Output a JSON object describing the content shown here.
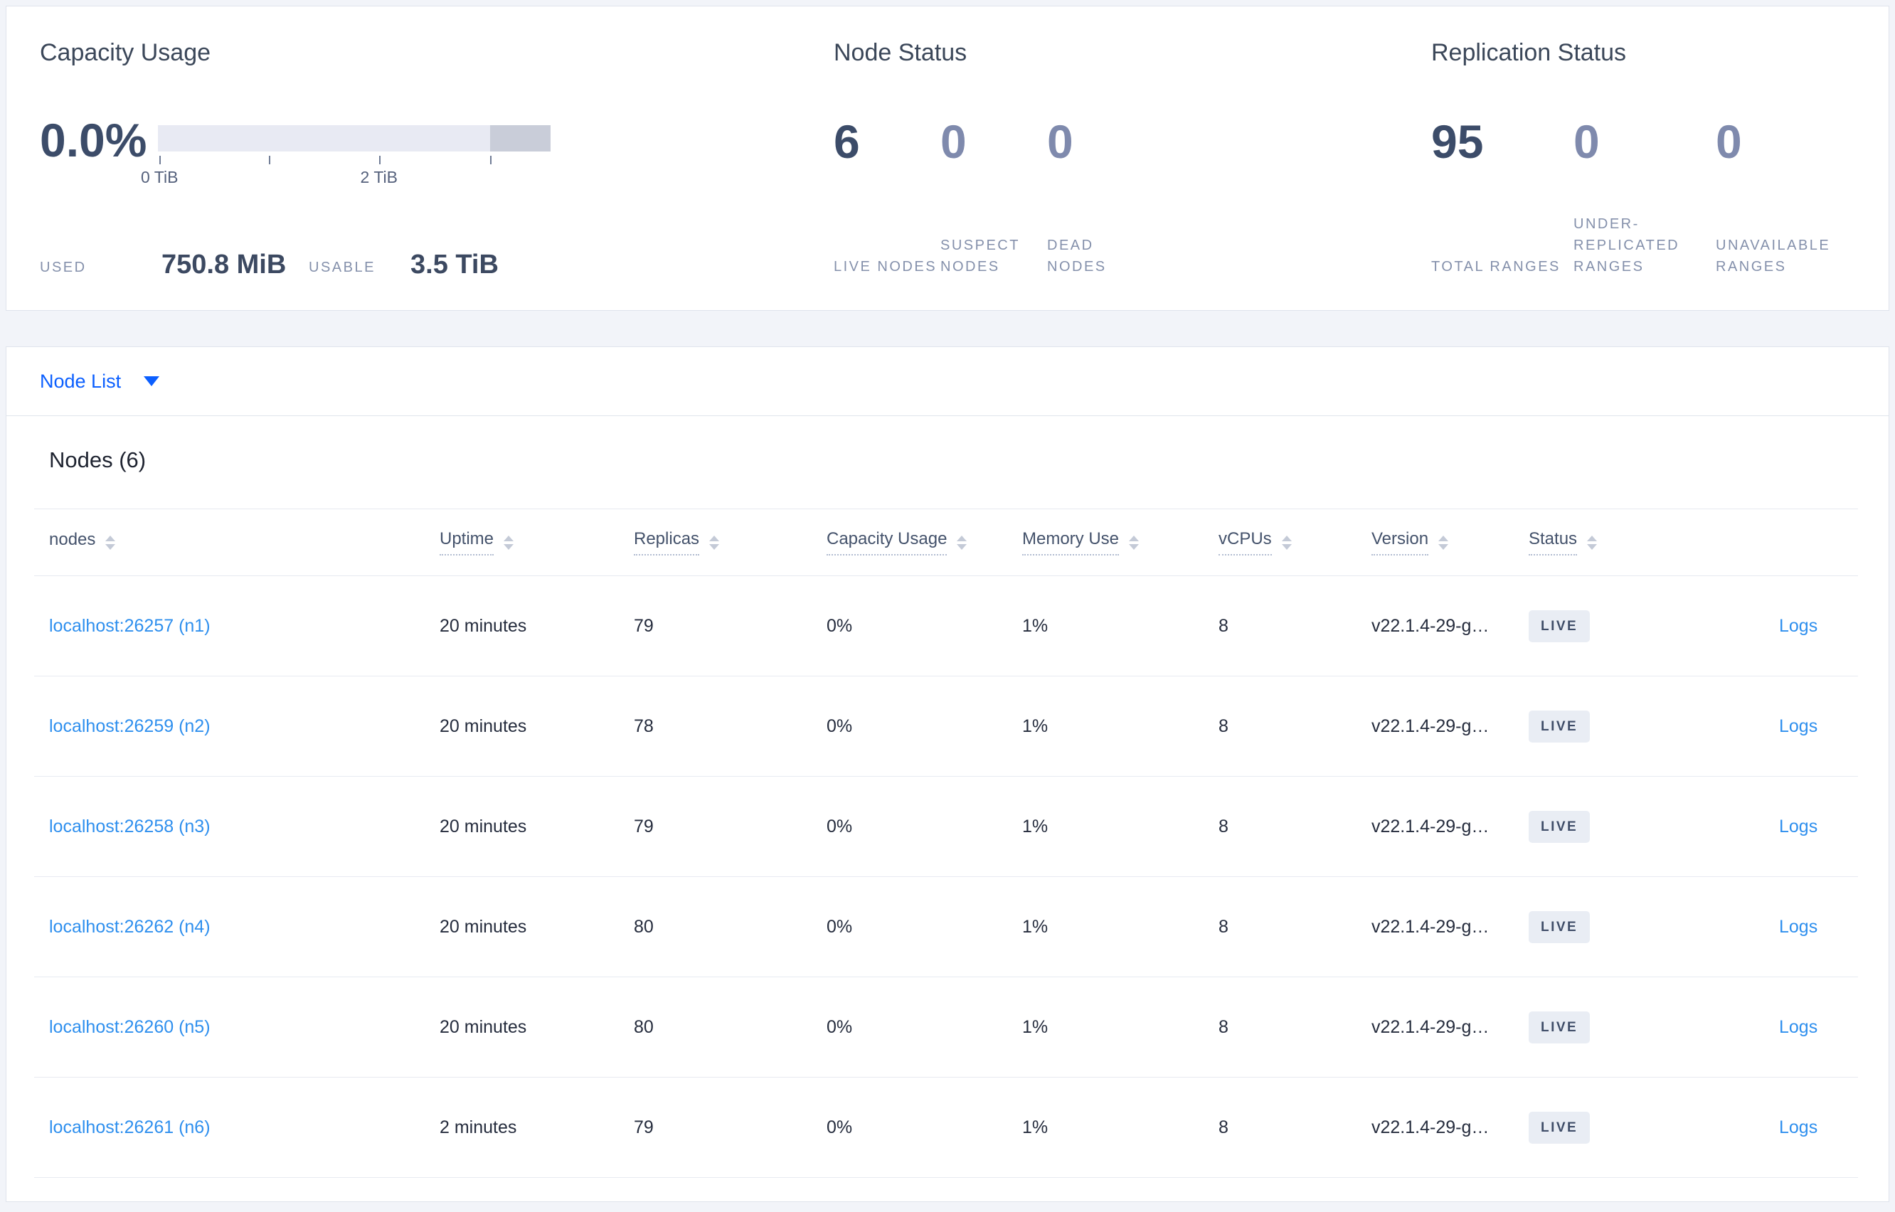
{
  "summary": {
    "capacity": {
      "title": "Capacity Usage",
      "percent": "0.0%",
      "bar": {
        "track_color": "#e8eaf3",
        "segment_color": "#c9cdd9",
        "segment_start": 0.846,
        "ticks": [
          {
            "pos": 0.004,
            "label": "0 TiB"
          },
          {
            "pos": 0.283,
            "label": ""
          },
          {
            "pos": 0.563,
            "label": "2 TiB"
          },
          {
            "pos": 0.846,
            "label": ""
          }
        ]
      },
      "used_label": "USED",
      "used_value": "750.8 MiB",
      "usable_label": "USABLE",
      "usable_value": "3.5 TiB"
    },
    "node_status": {
      "title": "Node Status",
      "stats": [
        {
          "value": "6",
          "label": "LIVE NODES",
          "emphasis": true
        },
        {
          "value": "0",
          "label": "SUSPECT NODES",
          "emphasis": false
        },
        {
          "value": "0",
          "label": "DEAD NODES",
          "emphasis": false
        }
      ]
    },
    "replication": {
      "title": "Replication Status",
      "stats": [
        {
          "value": "95",
          "label": "TOTAL RANGES",
          "emphasis": true
        },
        {
          "value": "0",
          "label": "UNDER-REPLICATED RANGES",
          "emphasis": false
        },
        {
          "value": "0",
          "label": "UNAVAILABLE RANGES",
          "emphasis": false
        }
      ]
    }
  },
  "view_selector": {
    "label": "Node List"
  },
  "nodes_section": {
    "heading": "Nodes (6)",
    "columns": [
      {
        "label": "nodes",
        "sortable": true,
        "underlined": false
      },
      {
        "label": "Uptime",
        "sortable": true,
        "underlined": true
      },
      {
        "label": "Replicas",
        "sortable": true,
        "underlined": true
      },
      {
        "label": "Capacity Usage",
        "sortable": true,
        "underlined": true
      },
      {
        "label": "Memory Use",
        "sortable": true,
        "underlined": true
      },
      {
        "label": "vCPUs",
        "sortable": true,
        "underlined": true
      },
      {
        "label": "Version",
        "sortable": true,
        "underlined": true
      },
      {
        "label": "Status",
        "sortable": true,
        "underlined": true
      },
      {
        "label": "",
        "sortable": false,
        "underlined": false
      }
    ],
    "rows": [
      {
        "node": "localhost:26257 (n1)",
        "uptime": "20 minutes",
        "replicas": "79",
        "capacity": "0%",
        "memory": "1%",
        "vcpus": "8",
        "version": "v22.1.4-29-g…",
        "status": "LIVE",
        "logs": "Logs"
      },
      {
        "node": "localhost:26259 (n2)",
        "uptime": "20 minutes",
        "replicas": "78",
        "capacity": "0%",
        "memory": "1%",
        "vcpus": "8",
        "version": "v22.1.4-29-g…",
        "status": "LIVE",
        "logs": "Logs"
      },
      {
        "node": "localhost:26258 (n3)",
        "uptime": "20 minutes",
        "replicas": "79",
        "capacity": "0%",
        "memory": "1%",
        "vcpus": "8",
        "version": "v22.1.4-29-g…",
        "status": "LIVE",
        "logs": "Logs"
      },
      {
        "node": "localhost:26262 (n4)",
        "uptime": "20 minutes",
        "replicas": "80",
        "capacity": "0%",
        "memory": "1%",
        "vcpus": "8",
        "version": "v22.1.4-29-g…",
        "status": "LIVE",
        "logs": "Logs"
      },
      {
        "node": "localhost:26260 (n5)",
        "uptime": "20 minutes",
        "replicas": "80",
        "capacity": "0%",
        "memory": "1%",
        "vcpus": "8",
        "version": "v22.1.4-29-g…",
        "status": "LIVE",
        "logs": "Logs"
      },
      {
        "node": "localhost:26261 (n6)",
        "uptime": "2 minutes",
        "replicas": "79",
        "capacity": "0%",
        "memory": "1%",
        "vcpus": "8",
        "version": "v22.1.4-29-g…",
        "status": "LIVE",
        "logs": "Logs"
      }
    ]
  },
  "colors": {
    "link_blue": "#2e8fee",
    "selector_blue": "#0b5fff",
    "badge_bg": "#e9edf4",
    "badge_text": "#3f4d68"
  }
}
